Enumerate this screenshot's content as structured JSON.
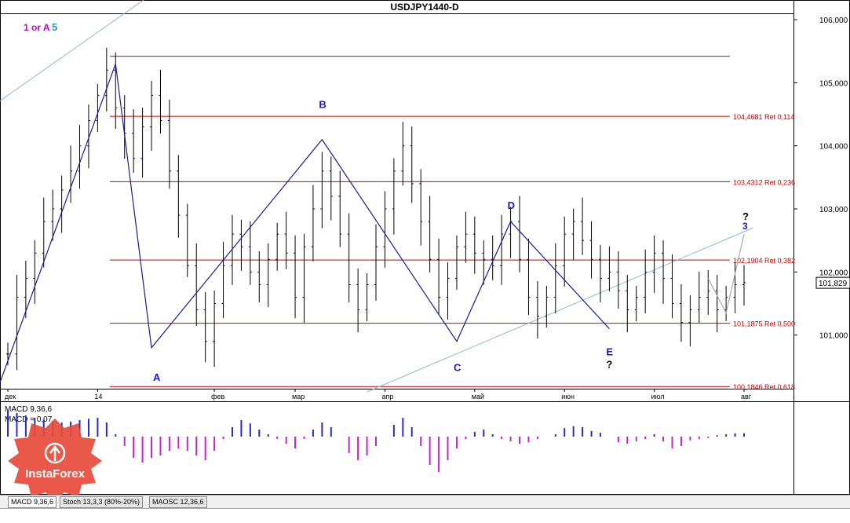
{
  "chart_data": {
    "type": "line",
    "title": "USDJPY1440-D",
    "price_axis": {
      "range": [
        100.15,
        106.1
      ],
      "ticks": [
        "106,000",
        "105,000",
        "104,000",
        "103,000",
        "102,000",
        "101,000"
      ],
      "tick_values": [
        106,
        105,
        104,
        103,
        102,
        101
      ]
    },
    "current_price": "101,829",
    "current_price_value": 101.829,
    "time_axis": {
      "labels": [
        "дек",
        "14",
        "фев",
        "мар",
        "апр",
        "май",
        "июн",
        "июл",
        "авг"
      ],
      "label_index": [
        0,
        10,
        23,
        32,
        42,
        52,
        62,
        72,
        82
      ]
    },
    "fib_levels": [
      {
        "value": 105.42,
        "label": ""
      },
      {
        "value": 104.4681,
        "label": "104,4681 Ret 0,114"
      },
      {
        "value": 103.4312,
        "label": "103,4312 Ret 0,236"
      },
      {
        "value": 102.1904,
        "label": "102,1904 Ret 0,382"
      },
      {
        "value": 101.1875,
        "label": "101,1875 Ret 0,500"
      },
      {
        "value": 100.1846,
        "label": "100,1846 Ret 0,618"
      }
    ],
    "ohlc_close": [
      100.7,
      101.6,
      101.9,
      102.3,
      102.8,
      103.0,
      103.3,
      103.6,
      104.0,
      104.4,
      104.8,
      105.2,
      104.6,
      104.2,
      103.8,
      104.3,
      104.8,
      104.4,
      103.6,
      102.9,
      102.1,
      101.4,
      100.9,
      101.5,
      102.1,
      102.6,
      102.4,
      102.0,
      101.8,
      102.2,
      102.6,
      102.3,
      101.6,
      102.4,
      103.0,
      103.6,
      103.2,
      102.6,
      101.8,
      101.4,
      101.8,
      102.4,
      103.0,
      103.6,
      104.0,
      103.4,
      102.8,
      102.2,
      101.6,
      101.9,
      102.4,
      102.6,
      102.3,
      102.2,
      102.1,
      102.6,
      102.8,
      102.2,
      101.6,
      101.3,
      101.6,
      102.1,
      102.6,
      102.8,
      102.5,
      102.2,
      101.9,
      102.0,
      101.7,
      101.4,
      101.6,
      102.0,
      102.3,
      101.9,
      101.5,
      101.2,
      101.4,
      101.6,
      101.7,
      101.4,
      101.6,
      101.8,
      101.83
    ],
    "wave_segments": [
      {
        "points": [
          [
            -1,
            100.2
          ],
          [
            12,
            105.3
          ],
          [
            16,
            100.8
          ],
          [
            35,
            104.1
          ],
          [
            50,
            100.9
          ],
          [
            56,
            102.8
          ],
          [
            67,
            101.1
          ]
        ],
        "color": "#1a1a9a"
      }
    ],
    "projection": {
      "points": [
        [
          78,
          101.9
        ],
        [
          80,
          101.35
        ],
        [
          82,
          102.6
        ]
      ],
      "color": "#aaaaaa"
    },
    "trend_channel": [
      {
        "from": [
          -2,
          104.6
        ],
        "to": [
          30,
          107.8
        ]
      },
      {
        "from": [
          40,
          100.1
        ],
        "to": [
          83,
          102.7
        ]
      }
    ],
    "wave_labels": [
      {
        "text": "1 or A",
        "color": "#cc00cc"
      },
      {
        "text": "5",
        "color": "#2299cc"
      },
      {
        "text": "A",
        "color": "#1a1acc"
      },
      {
        "text": "B",
        "color": "#1a1acc"
      },
      {
        "text": "C",
        "color": "#1a1acc"
      },
      {
        "text": "D",
        "color": "#1a1acc"
      },
      {
        "text": "E",
        "color": "#1a1acc"
      },
      {
        "text": "3",
        "color": "#1a1acc"
      },
      {
        "text": "?",
        "color": "#000000"
      },
      {
        "text": "?",
        "color": "#000000"
      }
    ],
    "indicator": {
      "name": "MACD 9,36,6",
      "value_label": "MACD = 0,07",
      "histogram": [
        0.55,
        0.5,
        0.45,
        0.4,
        0.36,
        0.33,
        0.3,
        0.32,
        0.35,
        0.38,
        0.4,
        0.3,
        0.05,
        -0.2,
        -0.45,
        -0.55,
        -0.45,
        -0.4,
        -0.3,
        -0.25,
        -0.3,
        -0.4,
        -0.5,
        -0.3,
        -0.05,
        0.2,
        0.35,
        0.28,
        0.15,
        0.05,
        -0.05,
        -0.15,
        -0.25,
        -0.05,
        0.15,
        0.3,
        0.2,
        0.0,
        -0.35,
        -0.5,
        -0.4,
        -0.2,
        0.0,
        0.25,
        0.4,
        0.2,
        -0.2,
        -0.6,
        -0.75,
        -0.5,
        -0.25,
        -0.05,
        0.1,
        0.15,
        0.05,
        -0.05,
        -0.1,
        -0.15,
        -0.12,
        -0.05,
        0.0,
        0.05,
        0.18,
        0.22,
        0.2,
        0.12,
        0.08,
        0.0,
        -0.12,
        -0.15,
        -0.1,
        -0.05,
        0.05,
        -0.1,
        -0.25,
        -0.2,
        -0.08,
        -0.05,
        -0.03,
        0.03,
        0.05,
        0.07,
        0.07
      ]
    }
  },
  "tabs": [
    {
      "label": "MACD 9,36,6",
      "active": true
    },
    {
      "label": "Stoch 13,3,3 (80%-20%)",
      "active": false
    },
    {
      "label": "MAOSC 12,36,6",
      "active": false
    }
  ],
  "logo_text": "InstaForex"
}
